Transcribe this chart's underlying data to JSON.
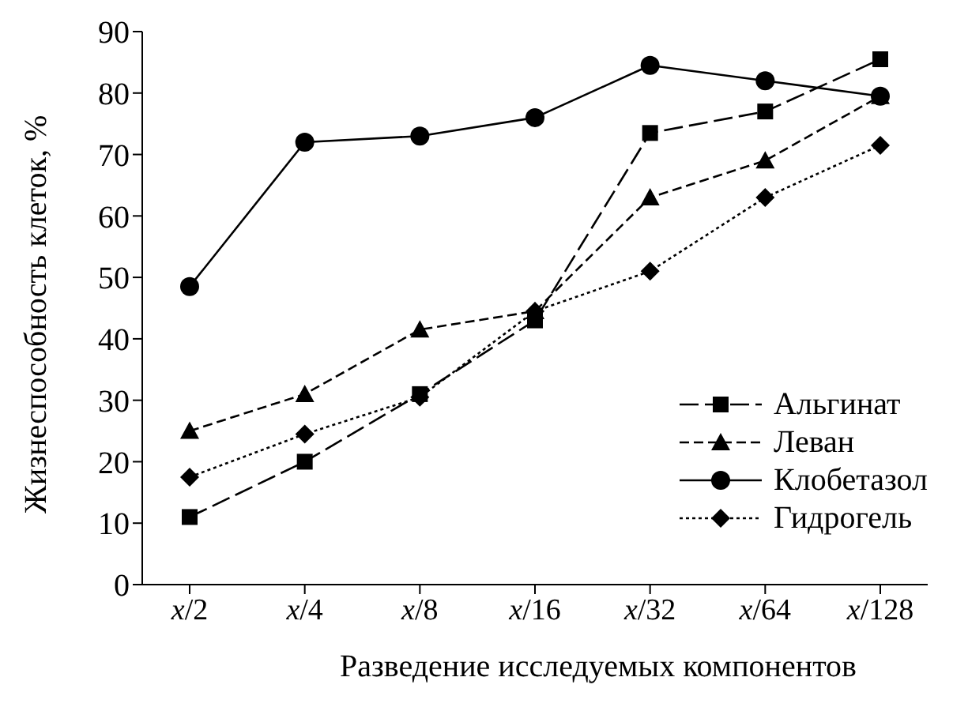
{
  "chart_data": {
    "type": "line",
    "xlabel": "Разведение исследуемых компонентов",
    "ylabel": "Жизнеспособность клеток, %",
    "categories": [
      "x/2",
      "x/4",
      "x/8",
      "x/16",
      "x/32",
      "x/64",
      "x/128"
    ],
    "series": [
      {
        "name": "Альгинат",
        "color": "#000000",
        "marker": "square",
        "line_style": "longdash",
        "values": [
          11,
          20,
          31,
          43,
          73.5,
          77,
          85.5
        ]
      },
      {
        "name": "Леван",
        "color": "#000000",
        "marker": "triangle",
        "line_style": "dashed",
        "values": [
          25,
          31,
          41.5,
          44.5,
          63,
          69,
          79.5
        ]
      },
      {
        "name": "Клобетазол",
        "color": "#000000",
        "marker": "circle",
        "line_style": "solid",
        "values": [
          48.5,
          72,
          73,
          76,
          84.5,
          82,
          79.5
        ]
      },
      {
        "name": "Гидрогель",
        "color": "#000000",
        "marker": "diamond",
        "line_style": "dotted",
        "values": [
          17.5,
          24.5,
          30.5,
          44.5,
          51,
          63,
          71.5
        ]
      }
    ],
    "ylim": [
      0,
      90
    ],
    "yticks": [
      0,
      10,
      20,
      30,
      40,
      50,
      60,
      70,
      80,
      90
    ],
    "grid": false,
    "legend": "bottom right"
  }
}
